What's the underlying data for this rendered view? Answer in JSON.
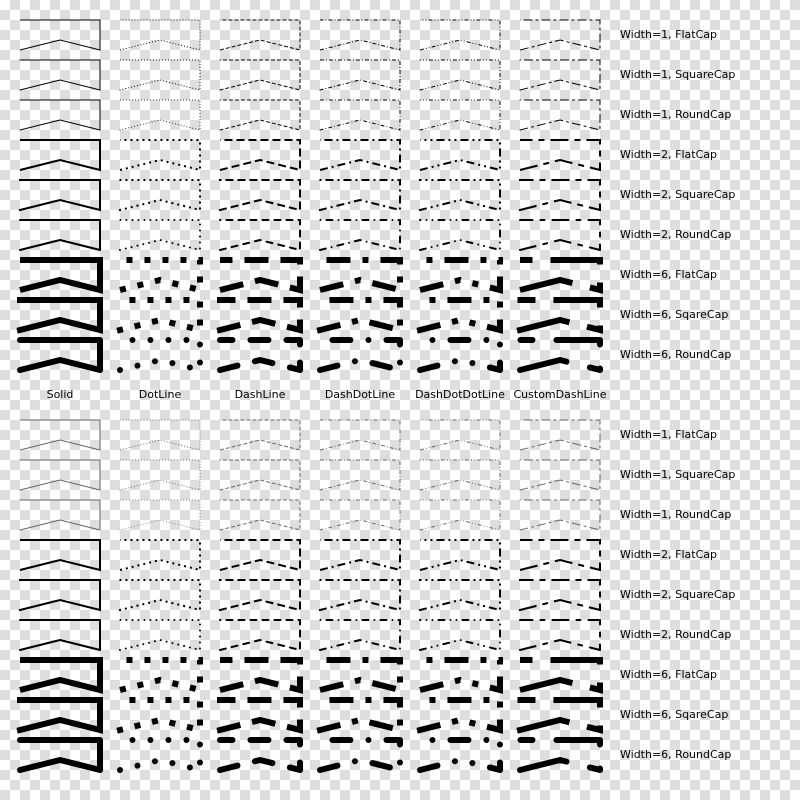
{
  "columns": [
    "Solid",
    "DotLine",
    "DashLine",
    "DashDotLine",
    "DashDotDotLine",
    "CustomDashLine"
  ],
  "rows": [
    "Width=1, FlatCap",
    "Width=1, SquareCap",
    "Width=1, RoundCap",
    "Width=2, FlatCap",
    "Width=2, SquareCap",
    "Width=2, RoundCap",
    "Width=6, FlatCap",
    "Width=6, SqareCap",
    "Width=6, RoundCap"
  ],
  "panels": [
    {
      "name": "top"
    },
    {
      "name": "bottom"
    }
  ],
  "colors": {
    "pen": "#000000",
    "thin_pen_bottom": "#666666",
    "checker": "#dedede"
  }
}
